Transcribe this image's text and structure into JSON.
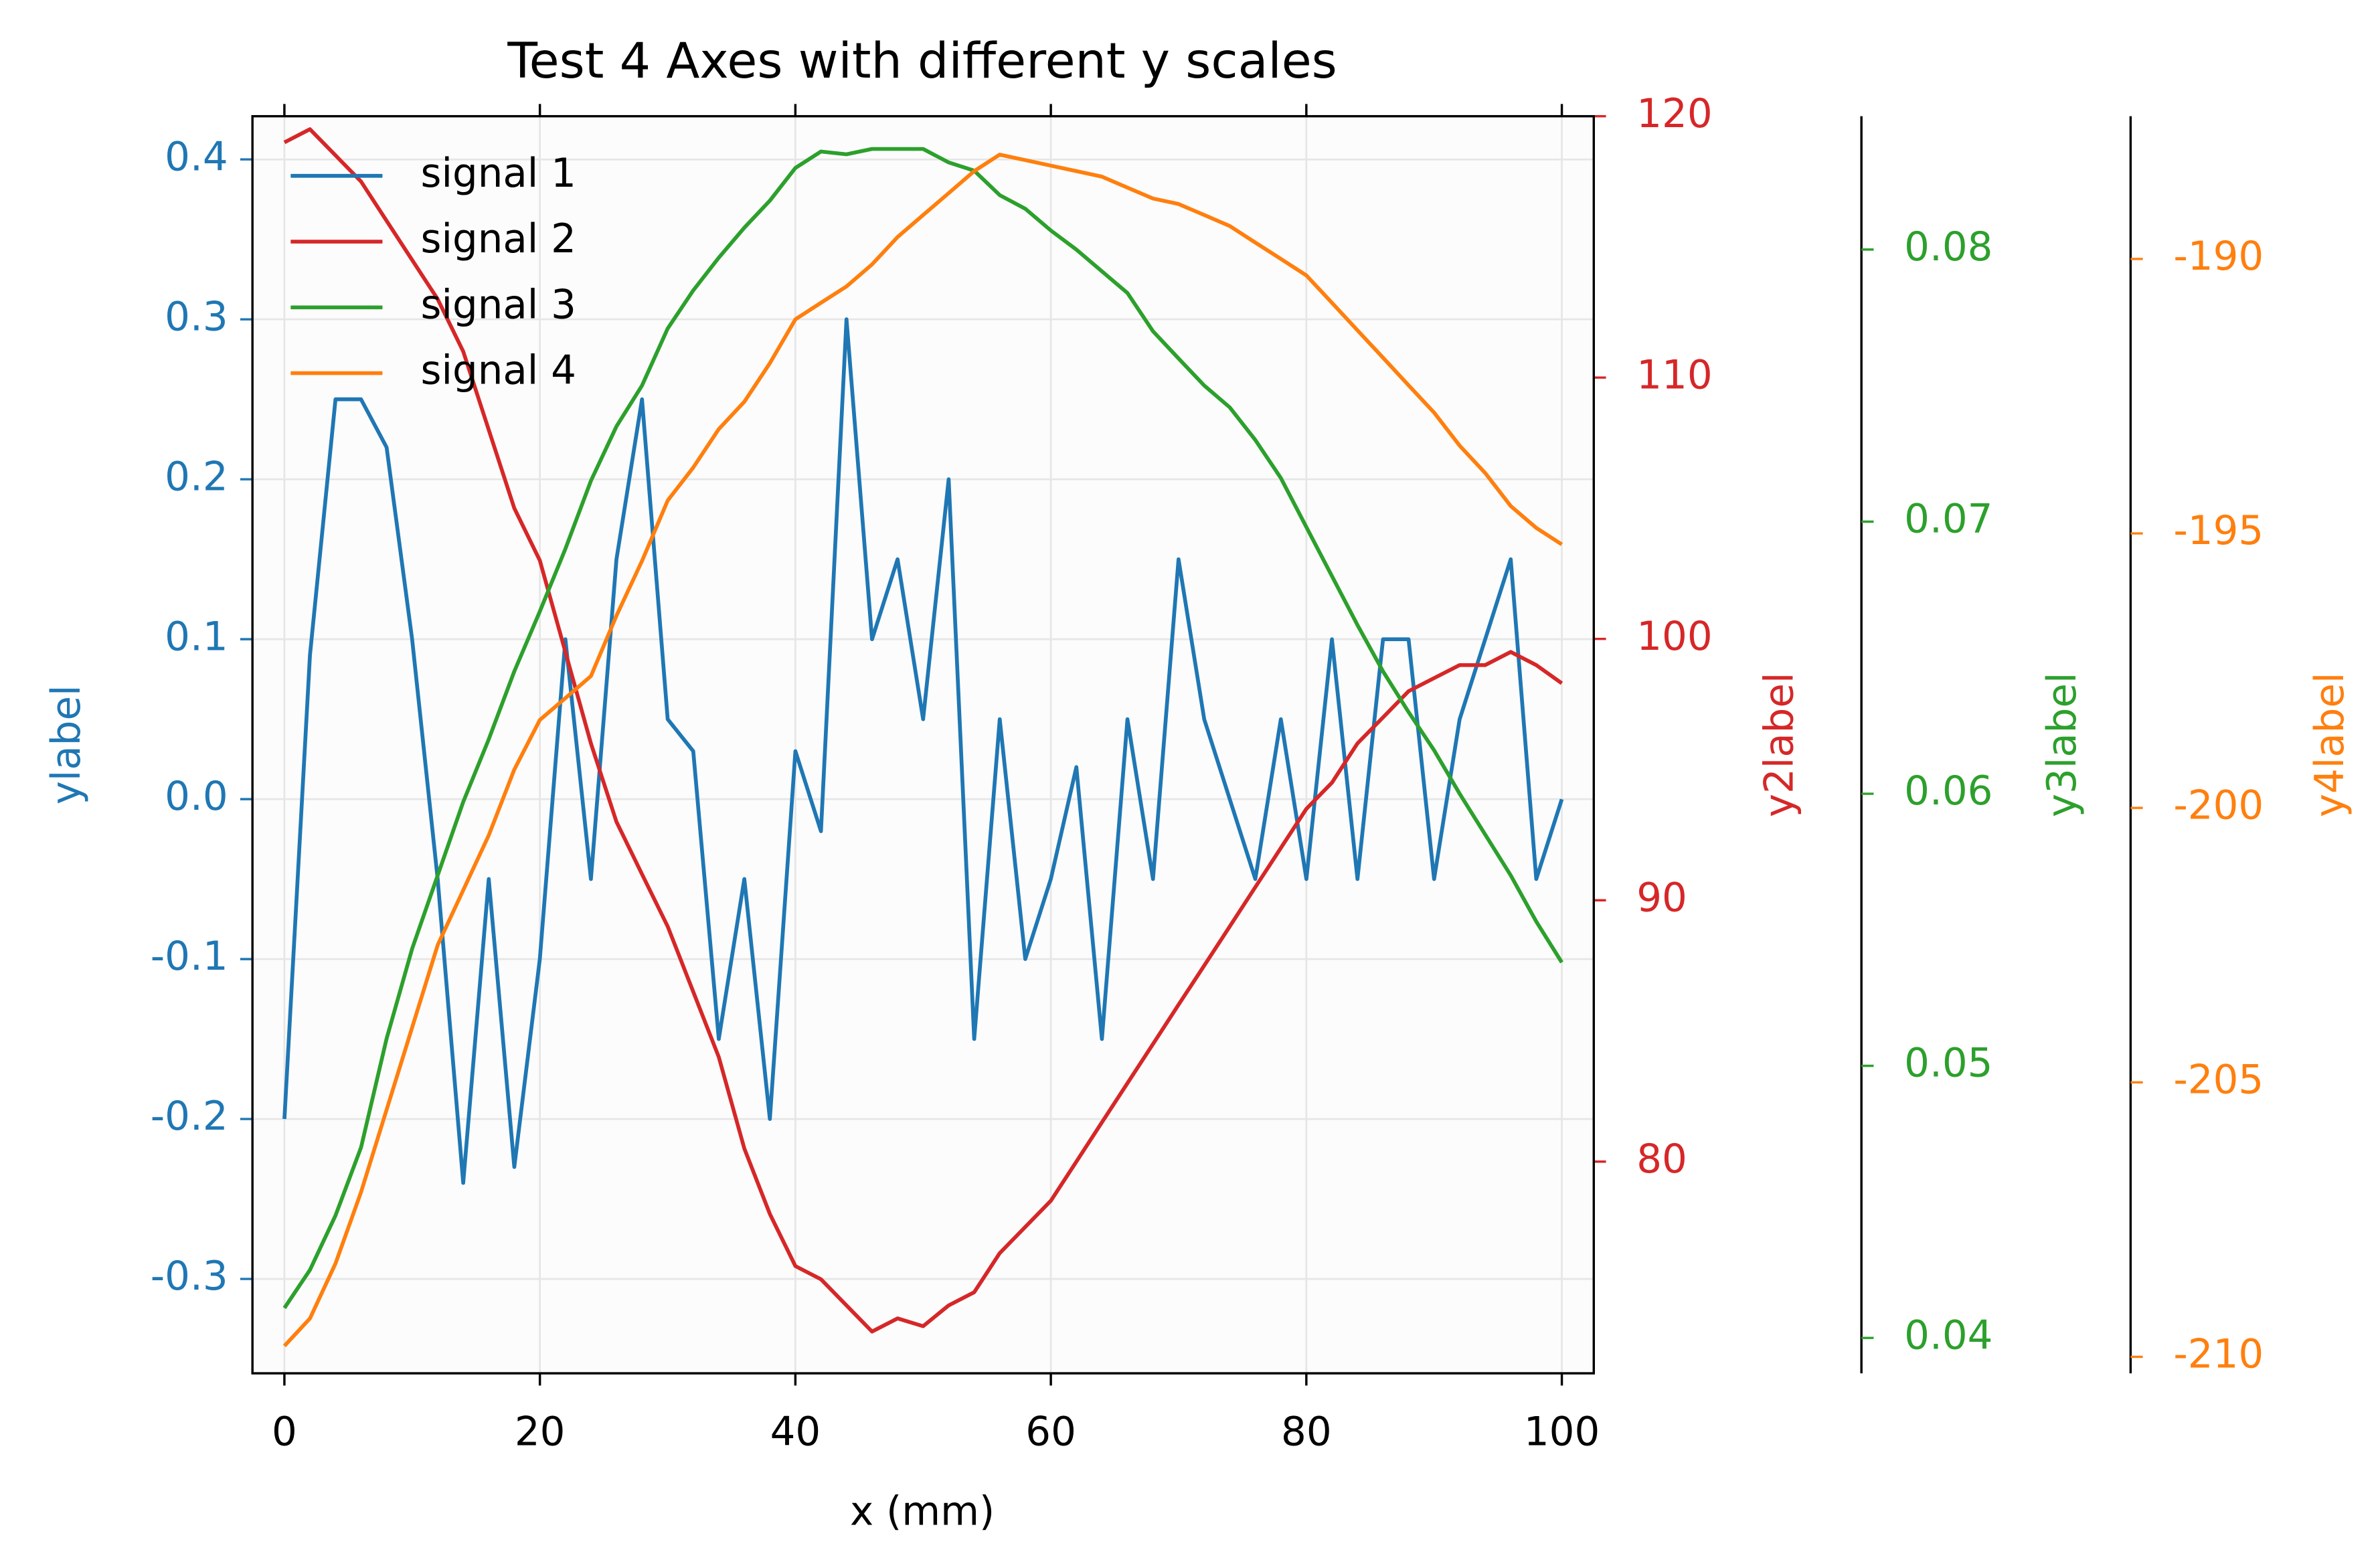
{
  "chart_data": {
    "type": "line",
    "title": "Test 4 Axes with different y scales",
    "xlabel": "x (mm)",
    "ylabel": "ylabel",
    "y2label": "y2label",
    "y3label": "y3label",
    "y4label": "y4label",
    "x": [
      0,
      2,
      4,
      6,
      8,
      10,
      12,
      14,
      16,
      18,
      20,
      22,
      24,
      26,
      28,
      30,
      32,
      34,
      36,
      38,
      40,
      42,
      44,
      46,
      48,
      50,
      52,
      54,
      56,
      58,
      60,
      62,
      64,
      66,
      68,
      70,
      72,
      74,
      76,
      78,
      80,
      82,
      84,
      86,
      88,
      90,
      92,
      94,
      96,
      98,
      100
    ],
    "xlim": [
      -2.5,
      102.5
    ],
    "xticks": [
      0,
      20,
      40,
      60,
      80,
      100
    ],
    "ylim": [
      -0.359,
      0.427
    ],
    "yticks": [
      -0.3,
      -0.2,
      -0.1,
      {
        "value": 0,
        "label": "0.0"
      },
      0.1,
      0.2,
      0.3,
      0.4
    ],
    "y2lim": [
      71.9,
      120
    ],
    "y2ticks": [
      80,
      90,
      100,
      110,
      120
    ],
    "y3lim": [
      0.0387,
      0.0849
    ],
    "y3ticks": [
      0.04,
      0.05,
      0.06,
      0.07,
      0.08
    ],
    "y4lim": [
      -210.3,
      -187.4
    ],
    "y4ticks": [
      -210,
      -205,
      -200,
      -195,
      -190
    ],
    "grid": true,
    "legend": "upper left",
    "series": [
      {
        "name": "signal 1",
        "color": "#1f77b4",
        "axis": "y",
        "values": [
          -0.2,
          0.09,
          0.25,
          0.25,
          0.22,
          0.1,
          -0.05,
          -0.24,
          -0.05,
          -0.23,
          -0.1,
          0.1,
          -0.05,
          0.15,
          0.25,
          0.05,
          0.03,
          -0.15,
          -0.05,
          -0.2,
          0.03,
          -0.02,
          0.3,
          0.1,
          0.15,
          0.05,
          0.2,
          -0.15,
          0.05,
          -0.1,
          -0.05,
          0.02,
          -0.15,
          0.05,
          -0.05,
          0.15,
          0.05,
          0.0,
          -0.05,
          0.05,
          -0.05,
          0.1,
          -0.05,
          0.1,
          0.1,
          -0.05,
          0.05,
          0.1,
          0.15,
          -0.05,
          0.0
        ]
      },
      {
        "name": "signal 2",
        "color": "#d62728",
        "axis": "y2",
        "values": [
          119,
          119.5,
          118.5,
          117.5,
          116,
          114.5,
          113,
          111,
          108,
          105,
          103,
          99.5,
          96,
          93,
          91,
          89,
          86.5,
          84,
          80.5,
          78,
          76,
          75.5,
          74.5,
          73.5,
          74,
          73.7,
          74.5,
          75,
          76.5,
          77.5,
          78.5,
          80,
          81.5,
          83,
          84.5,
          86,
          87.5,
          89,
          90.5,
          92,
          93.5,
          94.5,
          96,
          97,
          98,
          98.5,
          99,
          99,
          99.5,
          99,
          98.3
        ]
      },
      {
        "name": "signal 3",
        "color": "#2ca02c",
        "axis": "y3",
        "values": [
          0.0411,
          0.0425,
          0.0445,
          0.047,
          0.051,
          0.0543,
          0.057,
          0.0597,
          0.062,
          0.0645,
          0.0667,
          0.069,
          0.0715,
          0.0735,
          0.075,
          0.0771,
          0.0785,
          0.0797,
          0.0808,
          0.0818,
          0.083,
          0.0836,
          0.0835,
          0.0837,
          0.0837,
          0.0837,
          0.0832,
          0.0829,
          0.082,
          0.0815,
          0.0807,
          0.08,
          0.0792,
          0.0784,
          0.077,
          0.076,
          0.075,
          0.0742,
          0.073,
          0.0716,
          0.0698,
          0.068,
          0.0662,
          0.0645,
          0.063,
          0.0616,
          0.06,
          0.0585,
          0.057,
          0.0553,
          0.0538
        ]
      },
      {
        "name": "signal 4",
        "color": "#ff7f0e",
        "axis": "y4",
        "values": [
          -209.8,
          -209.3,
          -208.3,
          -207,
          -205.5,
          -204,
          -202.5,
          -201.5,
          -200.5,
          -199.3,
          -198.4,
          -198,
          -197.6,
          -196.5,
          -195.5,
          -194.4,
          -193.8,
          -193.1,
          -192.6,
          -191.9,
          -191.1,
          -190.8,
          -190.5,
          -190.1,
          -189.6,
          -189.2,
          -188.8,
          -188.4,
          -188.1,
          -188.2,
          -188.3,
          -188.4,
          -188.5,
          -188.7,
          -188.9,
          -189,
          -189.2,
          -189.4,
          -189.7,
          -190,
          -190.3,
          -190.8,
          -191.3,
          -191.8,
          -192.3,
          -192.8,
          -193.4,
          -193.9,
          -194.5,
          -194.9,
          -195.2
        ]
      }
    ]
  }
}
